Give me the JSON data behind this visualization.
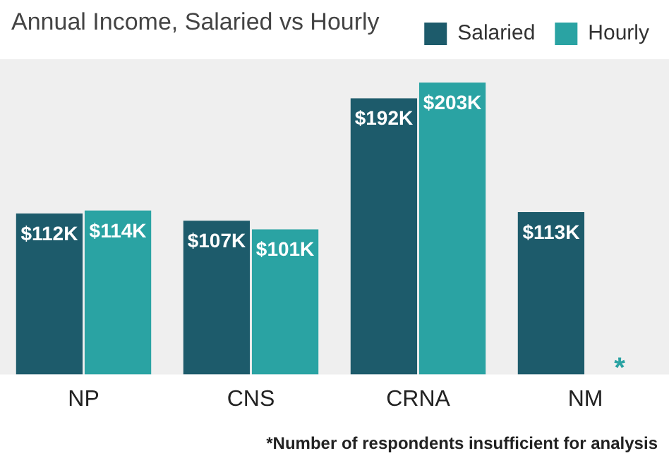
{
  "chart_data": {
    "type": "bar",
    "title": "Annual Income, Salaried vs Hourly",
    "categories": [
      "NP",
      "CNS",
      "CRNA",
      "NM"
    ],
    "series": [
      {
        "name": "Salaried",
        "color": "#1d5b6b",
        "values": [
          112,
          107,
          192,
          113
        ],
        "value_labels": [
          "$112K",
          "$107K",
          "$192K",
          "$113K"
        ]
      },
      {
        "name": "Hourly",
        "color": "#2aa3a3",
        "values": [
          114,
          101,
          203,
          null
        ],
        "value_labels": [
          "$114K",
          "$101K",
          "$203K",
          "*"
        ]
      }
    ],
    "legend": "top right",
    "grid": false,
    "tick_labels": "x",
    "annotations": [
      "*Number of respondents insufficient for analysis"
    ]
  }
}
